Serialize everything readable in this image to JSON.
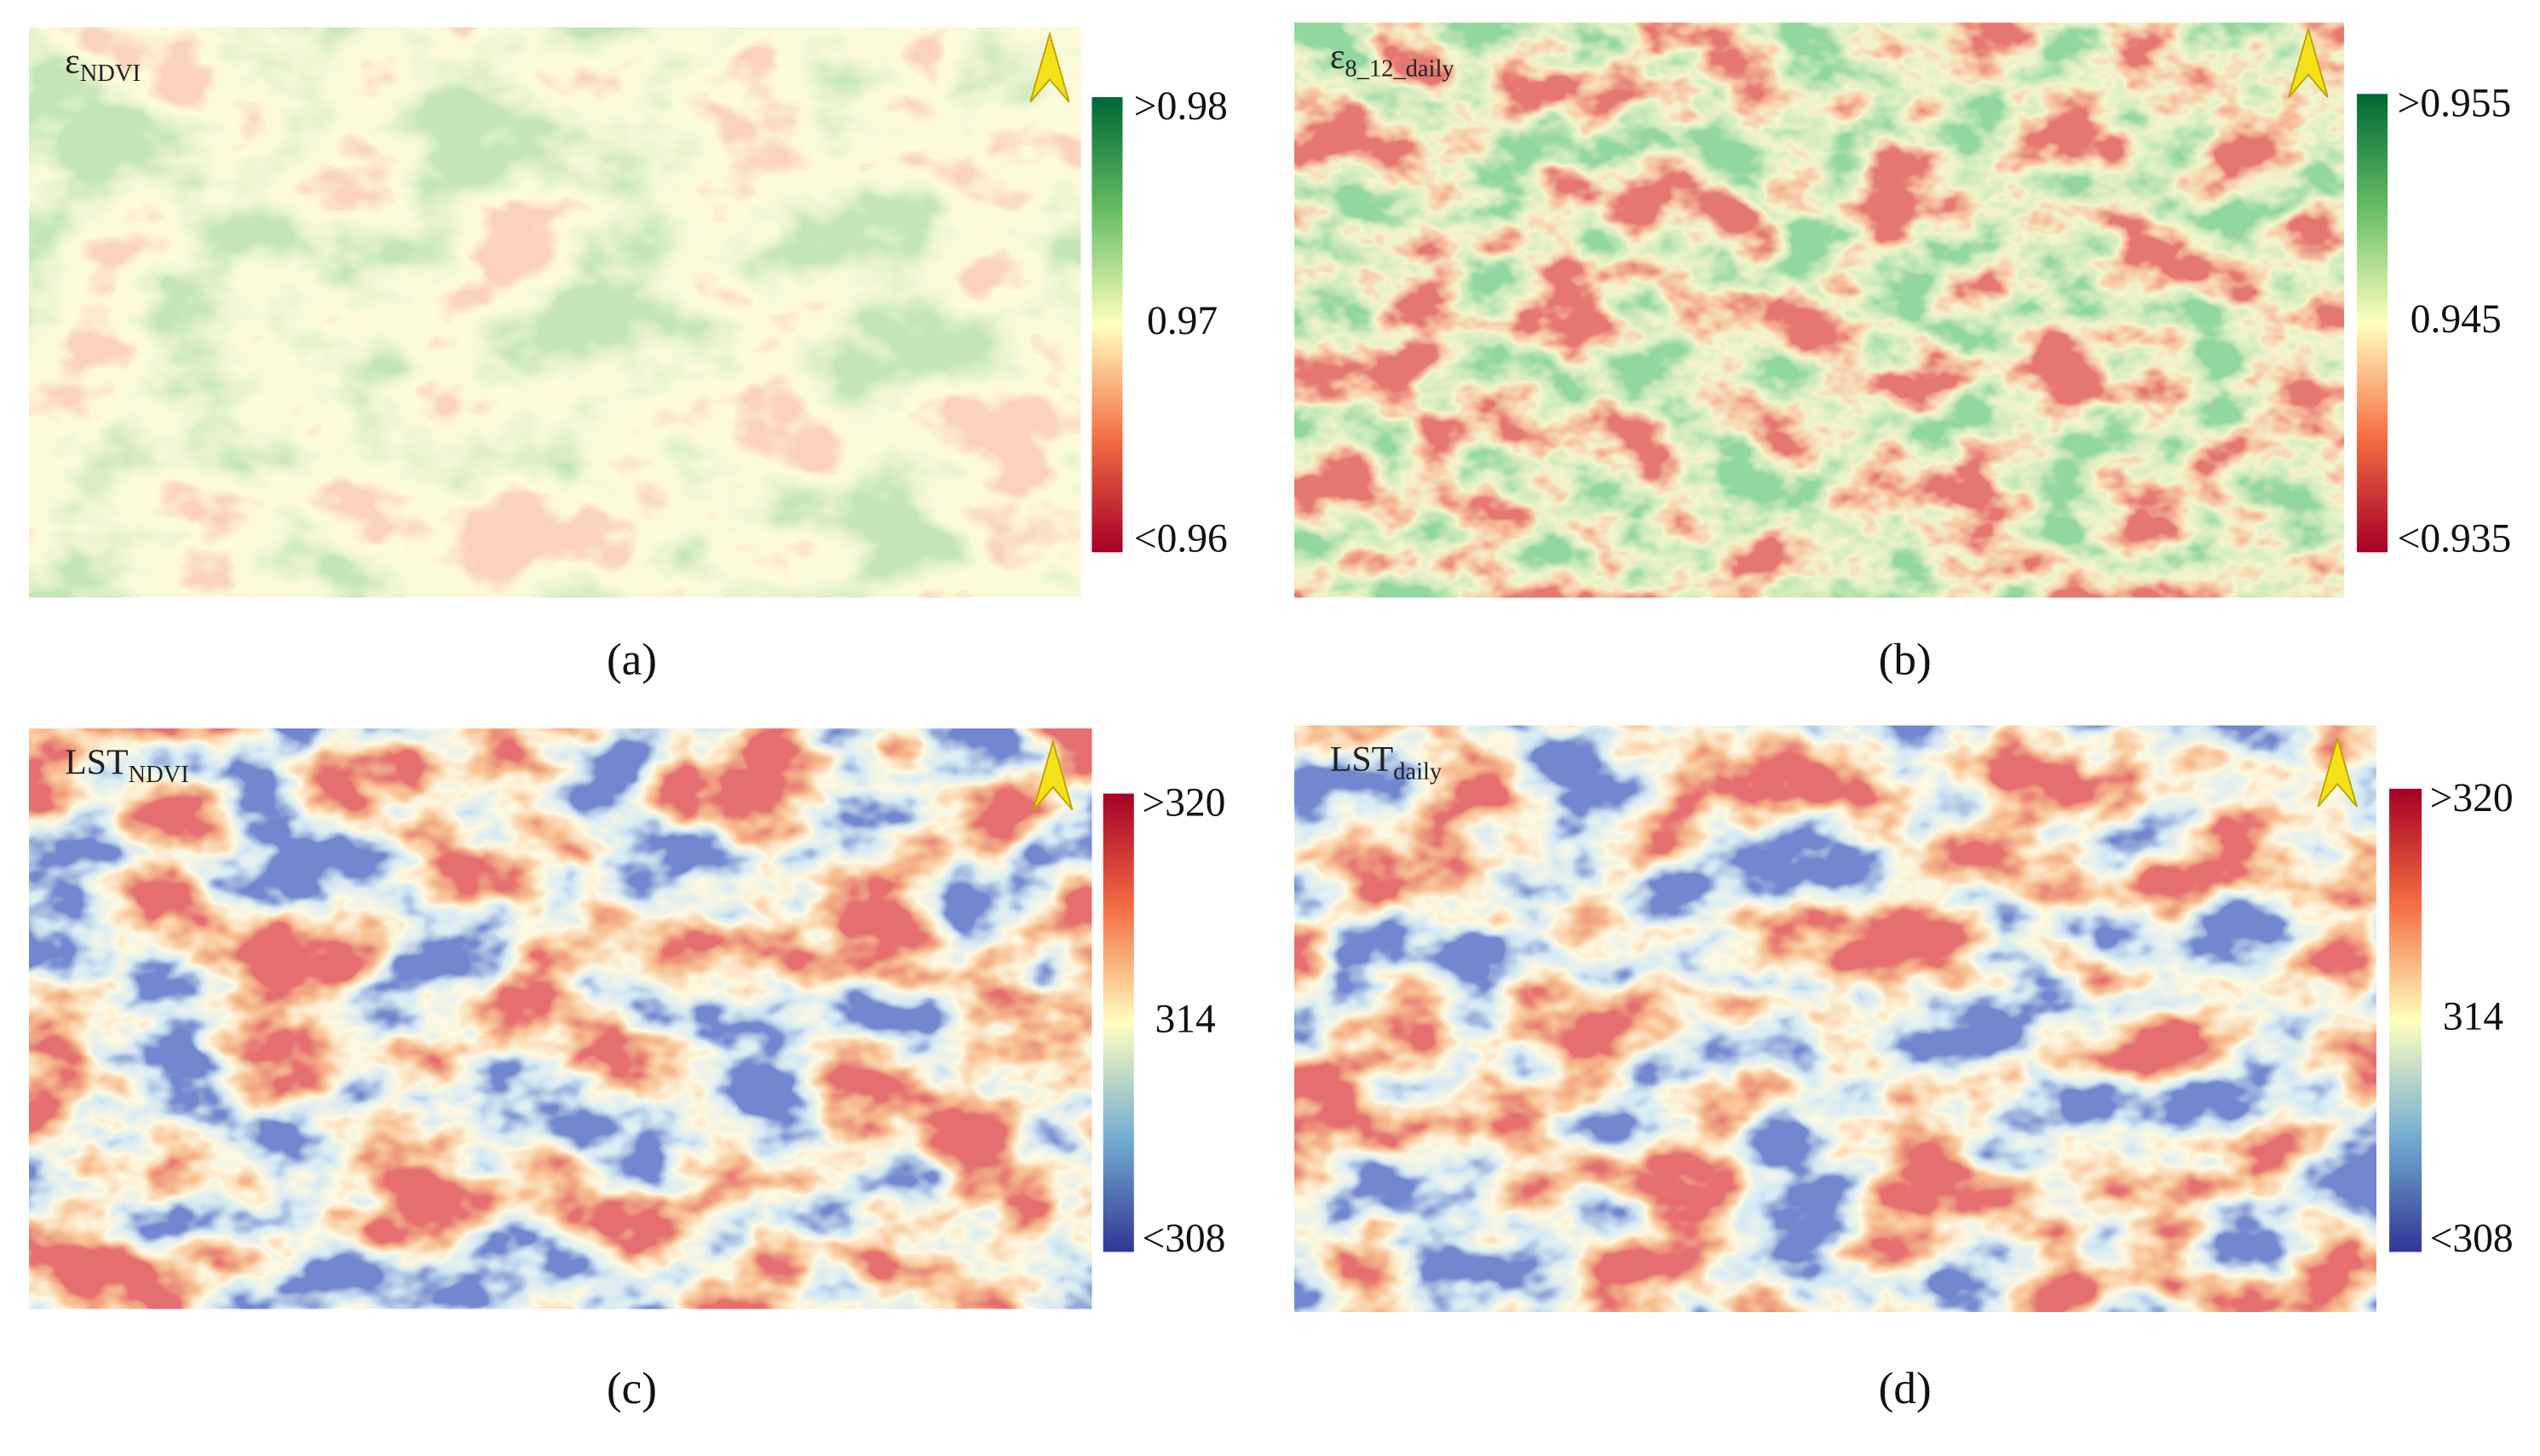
{
  "panels": [
    {
      "label": "ε",
      "label_sub": "NDVI",
      "colorbar": {
        "max": ">0.98",
        "mid": "0.97",
        "min": "<0.96"
      },
      "caption": "(a)"
    },
    {
      "label": "ε",
      "label_sub": "8_12_daily",
      "colorbar": {
        "max": ">0.955",
        "mid": "0.945",
        "min": "<0.935"
      },
      "caption": "(b)"
    },
    {
      "label": "LST",
      "label_sub": "NDVI",
      "colorbar": {
        "max": ">320",
        "mid": "314",
        "min": "<308"
      },
      "caption": "(c)"
    },
    {
      "label": "LST",
      "label_sub": "daily",
      "colorbar": {
        "max": ">320",
        "mid": "314",
        "min": "<308"
      },
      "caption": "(d)"
    }
  ]
}
